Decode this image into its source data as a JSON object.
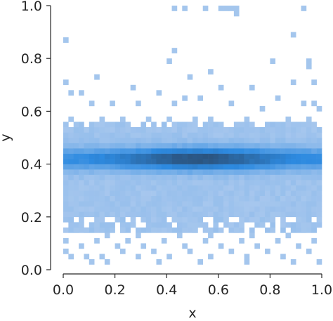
{
  "chart_data": {
    "type": "heatmap",
    "title": "",
    "xlabel": "x",
    "ylabel": "y",
    "xlim": [
      0.0,
      1.0
    ],
    "ylim": [
      0.0,
      1.0
    ],
    "x_ticks": [
      "0.0",
      "0.2",
      "0.4",
      "0.6",
      "0.8",
      "1.0"
    ],
    "y_ticks": [
      "0.0",
      "0.2",
      "0.4",
      "0.6",
      "0.8",
      "1.0"
    ],
    "grid": false,
    "legend": "none",
    "colormap": {
      "low": "#a9c8ee",
      "mid": "#2d8ae0",
      "high": "#2a4a6e"
    },
    "bins": {
      "x": 50,
      "y": 50
    },
    "density_description_values": {
      "band_center_y": 0.42,
      "band_core_halfwidth_y": 0.04,
      "moderate_region_y": [
        0.15,
        0.56
      ],
      "peak_x": 0.52
    },
    "sparse_cells": [
      [
        0.43,
        0.98
      ],
      [
        0.47,
        0.98
      ],
      [
        0.55,
        0.98
      ],
      [
        0.6,
        0.98
      ],
      [
        0.62,
        0.98
      ],
      [
        0.64,
        0.98
      ],
      [
        0.66,
        0.98
      ],
      [
        0.67,
        0.96
      ],
      [
        0.92,
        0.98
      ],
      [
        0.0,
        0.86
      ],
      [
        0.88,
        0.88
      ],
      [
        0.42,
        0.82
      ],
      [
        0.8,
        0.78
      ],
      [
        0.95,
        0.78
      ],
      [
        0.4,
        0.78
      ],
      [
        0.13,
        0.72
      ],
      [
        0.0,
        0.7
      ],
      [
        0.49,
        0.72
      ],
      [
        0.56,
        0.74
      ],
      [
        0.94,
        0.76
      ],
      [
        0.37,
        0.66
      ],
      [
        0.02,
        0.66
      ],
      [
        0.07,
        0.66
      ],
      [
        0.26,
        0.68
      ],
      [
        0.52,
        0.64
      ],
      [
        0.6,
        0.68
      ],
      [
        0.73,
        0.68
      ],
      [
        0.89,
        0.7
      ],
      [
        0.96,
        0.7
      ],
      [
        0.11,
        0.62
      ],
      [
        0.19,
        0.62
      ],
      [
        0.29,
        0.62
      ],
      [
        0.43,
        0.62
      ],
      [
        0.47,
        0.64
      ],
      [
        0.65,
        0.62
      ],
      [
        0.83,
        0.64
      ],
      [
        0.92,
        0.62
      ],
      [
        0.97,
        0.62
      ],
      [
        0.03,
        0.58
      ],
      [
        0.15,
        0.58
      ],
      [
        0.23,
        0.58
      ],
      [
        0.33,
        0.58
      ],
      [
        0.41,
        0.58
      ],
      [
        0.5,
        0.58
      ],
      [
        0.58,
        0.58
      ],
      [
        0.7,
        0.58
      ],
      [
        0.76,
        0.6
      ],
      [
        0.86,
        0.58
      ],
      [
        0.94,
        0.58
      ],
      [
        0.98,
        0.6
      ],
      [
        0.05,
        0.14
      ],
      [
        0.09,
        0.14
      ],
      [
        0.17,
        0.12
      ],
      [
        0.22,
        0.14
      ],
      [
        0.29,
        0.12
      ],
      [
        0.35,
        0.14
      ],
      [
        0.44,
        0.12
      ],
      [
        0.51,
        0.14
      ],
      [
        0.57,
        0.12
      ],
      [
        0.66,
        0.14
      ],
      [
        0.73,
        0.12
      ],
      [
        0.81,
        0.14
      ],
      [
        0.87,
        0.12
      ],
      [
        0.93,
        0.14
      ],
      [
        0.01,
        0.1
      ],
      [
        0.07,
        0.08
      ],
      [
        0.13,
        0.1
      ],
      [
        0.2,
        0.08
      ],
      [
        0.25,
        0.1
      ],
      [
        0.31,
        0.08
      ],
      [
        0.39,
        0.1
      ],
      [
        0.46,
        0.08
      ],
      [
        0.54,
        0.1
      ],
      [
        0.61,
        0.08
      ],
      [
        0.68,
        0.1
      ],
      [
        0.75,
        0.08
      ],
      [
        0.83,
        0.1
      ],
      [
        0.9,
        0.08
      ],
      [
        0.96,
        0.1
      ],
      [
        0.01,
        0.06
      ],
      [
        0.03,
        0.04
      ],
      [
        0.08,
        0.04
      ],
      [
        0.1,
        0.02
      ],
      [
        0.15,
        0.04
      ],
      [
        0.16,
        0.02
      ],
      [
        0.23,
        0.06
      ],
      [
        0.28,
        0.04
      ],
      [
        0.34,
        0.06
      ],
      [
        0.41,
        0.04
      ],
      [
        0.49,
        0.06
      ],
      [
        0.58,
        0.04
      ],
      [
        0.64,
        0.06
      ],
      [
        0.71,
        0.04
      ],
      [
        0.78,
        0.06
      ],
      [
        0.85,
        0.04
      ],
      [
        0.88,
        0.02
      ],
      [
        0.94,
        0.06
      ],
      [
        0.98,
        0.02
      ],
      [
        0.12,
        0.16
      ],
      [
        0.27,
        0.16
      ],
      [
        0.42,
        0.18
      ],
      [
        0.48,
        0.16
      ],
      [
        0.62,
        0.18
      ],
      [
        0.77,
        0.16
      ],
      [
        0.91,
        0.18
      ],
      [
        0.36,
        0.02
      ],
      [
        0.52,
        0.02
      ],
      [
        0.7,
        0.02
      ]
    ]
  }
}
